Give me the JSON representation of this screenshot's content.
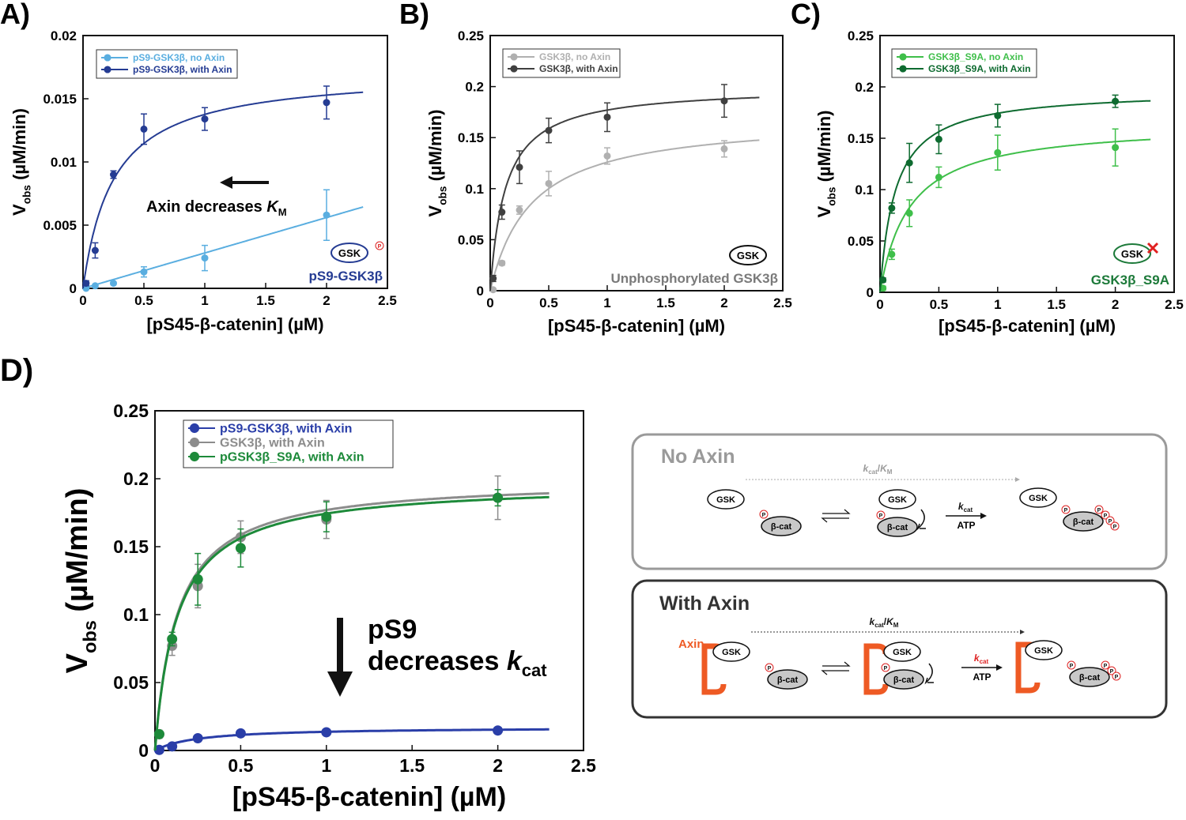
{
  "chart_data": [
    {
      "type": "scatter",
      "panel": "A)",
      "x": [
        0.025,
        0.1,
        0.25,
        0.5,
        1,
        2
      ],
      "series": [
        {
          "name": "pS9-GSK3β, no Axin",
          "color": "#5aaee0",
          "values": [
            0,
            0.0002,
            0.0004,
            0.0013,
            0.0024,
            0.0058
          ],
          "errors": [
            0,
            0.0001,
            0.0001,
            0.0004,
            0.001,
            0.002
          ],
          "fit": {
            "slope": 0.0028,
            "x_end": 2.3
          }
        },
        {
          "name": "pS9-GSK3β, with Axin",
          "color": "#253c93",
          "values": [
            0.0004,
            0.003,
            0.009,
            0.0126,
            0.0134,
            0.0147
          ],
          "errors": [
            0.0002,
            0.0006,
            0.0003,
            0.0012,
            0.0009,
            0.0013
          ],
          "fit": {
            "vmax": 0.0172,
            "km": 0.25,
            "x_end": 2.3
          }
        }
      ],
      "xlim": [
        0,
        2.5
      ],
      "xticks": [
        0,
        0.5,
        1,
        1.5,
        2,
        2.5
      ],
      "ylim": [
        0,
        0.02
      ],
      "yticks": [
        0,
        0.005,
        0.01,
        0.015,
        0.02
      ],
      "x_label": "[pS45-β-catenin] (µM)",
      "y_label": {
        "main": "V",
        "sub": "obs",
        "unit": " (µM/min)"
      },
      "annotation": {
        "text": "Axin decreases ",
        "var": "K",
        "sub": "M"
      },
      "inset": {
        "text": "pS9-GSK3β",
        "color": "#253c93",
        "icon": "GSK",
        "badge": "P"
      }
    },
    {
      "type": "scatter",
      "panel": "B)",
      "x": [
        0.025,
        0.1,
        0.25,
        0.5,
        1,
        2
      ],
      "series": [
        {
          "name": "GSK3β, no Axin",
          "color": "#b0b0b0",
          "values": [
            0.001,
            0.027,
            0.079,
            0.105,
            0.132,
            0.139
          ],
          "errors": [
            0.001,
            0.002,
            0.004,
            0.012,
            0.008,
            0.008
          ],
          "fit": {
            "vmax": 0.17,
            "km": 0.35,
            "x_end": 2.3
          }
        },
        {
          "name": "GSK3β, with Axin",
          "color": "#404040",
          "values": [
            0.012,
            0.077,
            0.121,
            0.157,
            0.17,
            0.186
          ],
          "errors": [
            0.003,
            0.007,
            0.016,
            0.012,
            0.014,
            0.016
          ],
          "fit": {
            "vmax": 0.2,
            "km": 0.13,
            "x_end": 2.3
          }
        }
      ],
      "xlim": [
        0,
        2.5
      ],
      "xticks": [
        0,
        0.5,
        1,
        1.5,
        2,
        2.5
      ],
      "ylim": [
        0,
        0.25
      ],
      "yticks": [
        0,
        0.05,
        0.1,
        0.15,
        0.2,
        0.25
      ],
      "x_label": "[pS45-β-catenin] (µM)",
      "y_label": {
        "main": "V",
        "sub": "obs",
        "unit": " (µM/min)"
      },
      "inset": {
        "text": "Unphosphorylated GSK3β",
        "color": "#7a7a7a",
        "icon": "GSK"
      }
    },
    {
      "type": "scatter",
      "panel": "C)",
      "x": [
        0.025,
        0.1,
        0.25,
        0.5,
        1,
        2
      ],
      "series": [
        {
          "name": "GSK3β_S9A, no Axin",
          "color": "#3fbf4a",
          "values": [
            0.004,
            0.037,
            0.077,
            0.112,
            0.136,
            0.141
          ],
          "errors": [
            0.002,
            0.005,
            0.013,
            0.01,
            0.017,
            0.018
          ],
          "fit": {
            "vmax": 0.165,
            "km": 0.25,
            "x_end": 2.3
          }
        },
        {
          "name": "GSK3β_S9A, with Axin",
          "color": "#0e6b30",
          "values": [
            0.012,
            0.082,
            0.126,
            0.149,
            0.172,
            0.186
          ],
          "errors": [
            0.002,
            0.005,
            0.019,
            0.014,
            0.011,
            0.006
          ],
          "fit": {
            "vmax": 0.197,
            "km": 0.13,
            "x_end": 2.3
          }
        }
      ],
      "xlim": [
        0,
        2.5
      ],
      "xticks": [
        0,
        0.5,
        1,
        1.5,
        2,
        2.5
      ],
      "ylim": [
        0,
        0.25
      ],
      "yticks": [
        0,
        0.05,
        0.1,
        0.15,
        0.2,
        0.25
      ],
      "x_label": "[pS45-β-catenin] (µM)",
      "y_label": {
        "main": "V",
        "sub": "obs",
        "unit": " (µM/min)"
      },
      "inset": {
        "text": "GSK3β_S9A",
        "color": "#1d7a3a",
        "icon": "GSK"
      }
    },
    {
      "type": "scatter",
      "panel": "D)",
      "x": [
        0.025,
        0.1,
        0.25,
        0.5,
        1,
        2
      ],
      "series": [
        {
          "name": "pS9-GSK3β, with Axin",
          "color": "#2a3ea8",
          "values": [
            0.0004,
            0.003,
            0.009,
            0.0126,
            0.0134,
            0.0147
          ],
          "fit": {
            "vmax": 0.0172,
            "km": 0.25,
            "x_end": 2.3
          }
        },
        {
          "name": "GSK3β, with Axin",
          "color": "#8c8c8c",
          "values": [
            0.012,
            0.077,
            0.121,
            0.157,
            0.17,
            0.186
          ],
          "errors": [
            0.003,
            0.007,
            0.016,
            0.012,
            0.014,
            0.016
          ],
          "fit": {
            "vmax": 0.2,
            "km": 0.13,
            "x_end": 2.3
          }
        },
        {
          "name": "pGSK3β_S9A, with Axin",
          "color": "#1d8a3a",
          "values": [
            0.012,
            0.082,
            0.126,
            0.149,
            0.172,
            0.186
          ],
          "errors": [
            0.002,
            0.005,
            0.019,
            0.014,
            0.011,
            0.006
          ],
          "fit": {
            "vmax": 0.197,
            "km": 0.13,
            "x_end": 2.3
          }
        }
      ],
      "xlim": [
        0,
        2.5
      ],
      "xticks": [
        0,
        0.5,
        1,
        1.5,
        2,
        2.5
      ],
      "ylim": [
        0,
        0.25
      ],
      "yticks": [
        0,
        0.05,
        0.1,
        0.15,
        0.2,
        0.25
      ],
      "x_label": "[pS45-β-catenin] (µM)",
      "y_label": {
        "main": "V",
        "sub": "obs",
        "unit": " (µM/min)"
      },
      "annotation": {
        "line1": "pS9",
        "text": "decreases ",
        "var": "k",
        "sub": "cat"
      }
    }
  ],
  "diagram": {
    "no_axin": "No Axin",
    "with_axin": "With Axin",
    "gsk": "GSK",
    "bcat": "β-cat",
    "p": "P",
    "axin": "Axin",
    "atp": "ATP",
    "k": "k",
    "cat": "cat",
    "slash": "/",
    "K": "K",
    "M": "M"
  }
}
